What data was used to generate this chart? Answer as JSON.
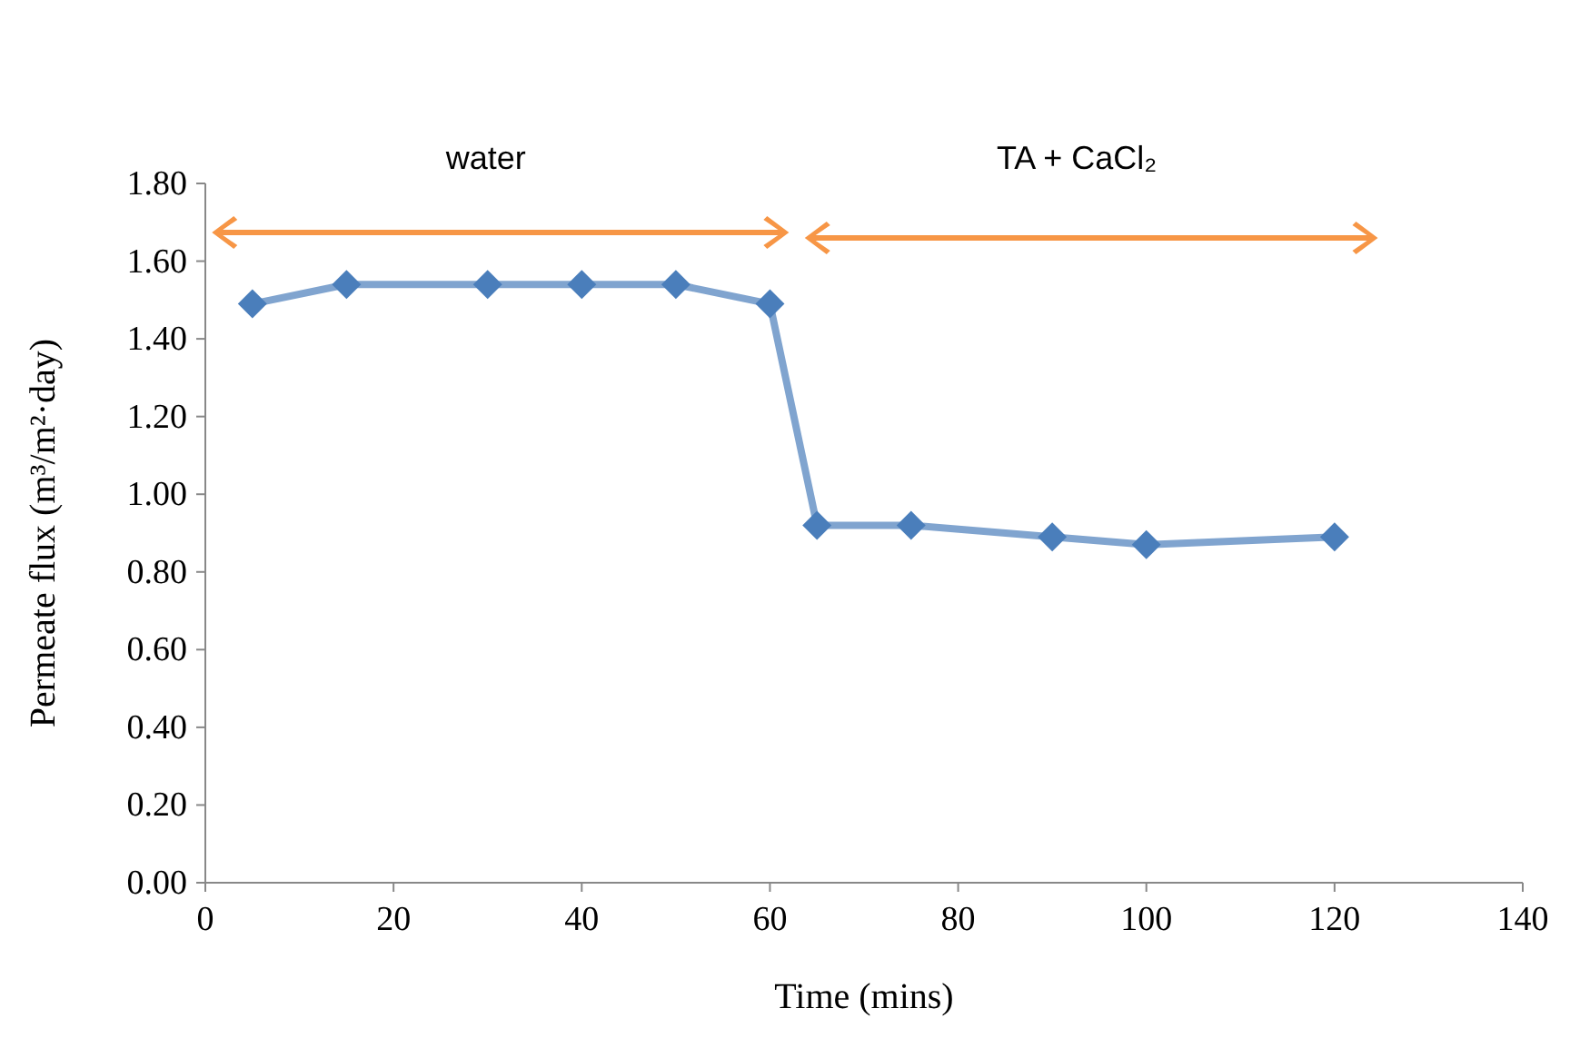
{
  "chart_data": {
    "type": "line",
    "xlabel": "Time (mins)",
    "ylabel": "Permeate flux  (m³/m²·day)",
    "x": [
      5,
      15,
      30,
      40,
      50,
      60,
      65,
      75,
      90,
      100,
      120
    ],
    "series": [
      {
        "color": "#4a7ebb",
        "values": [
          1.49,
          1.54,
          1.54,
          1.54,
          1.54,
          1.49,
          0.92,
          0.92,
          0.89,
          0.87,
          0.89
        ]
      }
    ],
    "xlim": [
      0,
      140
    ],
    "xticks": [
      0,
      20,
      40,
      60,
      80,
      100,
      120,
      140
    ],
    "ylim": [
      0,
      1.8
    ],
    "yticks": [
      {
        "value": 0,
        "label": "0.00"
      },
      {
        "value": 0.2,
        "label": "0.20"
      },
      {
        "value": 0.4,
        "label": "0.40"
      },
      {
        "value": 0.6,
        "label": "0.60"
      },
      {
        "value": 0.8,
        "label": "0.80"
      },
      {
        "value": 1,
        "label": "1.00"
      },
      {
        "value": 1.2,
        "label": "1.20"
      },
      {
        "value": 1.4,
        "label": "1.40"
      },
      {
        "value": 1.6,
        "label": "1.60"
      },
      {
        "value": 1.8,
        "label": "1.80"
      }
    ],
    "marker": "diamond",
    "line_style": "solid",
    "grid": false,
    "annotations": [
      "water",
      "TA + CaCl₂"
    ]
  }
}
